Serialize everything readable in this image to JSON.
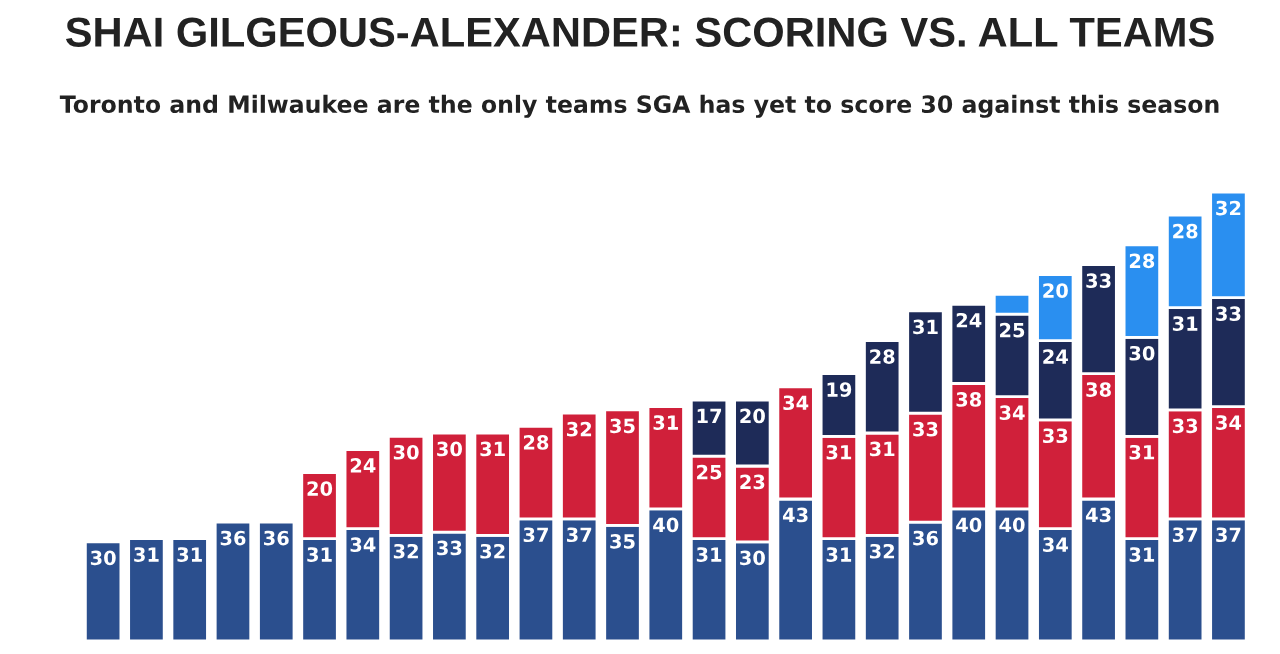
{
  "chart_data": {
    "type": "bar",
    "stacked": true,
    "title": "SHAI GILGEOUS-ALEXANDER: SCORING VS. ALL TEAMS",
    "subtitle": "Toronto and Milwaukee are the only teams SGA has yet to score 30 against this season",
    "categories": [
      null,
      null,
      null,
      null,
      null,
      null,
      null,
      null,
      null,
      null,
      null,
      null,
      null,
      null,
      null,
      null,
      null,
      null,
      null,
      null,
      null,
      null,
      null,
      null,
      null,
      null,
      null
    ],
    "series": [
      {
        "color": "#2b4f8e",
        "values": [
          30,
          31,
          31,
          36,
          36,
          31,
          34,
          32,
          33,
          32,
          37,
          37,
          35,
          40,
          31,
          30,
          43,
          31,
          32,
          36,
          40,
          40,
          34,
          43,
          31,
          37,
          37
        ],
        "value_labels": [
          "30",
          "31",
          "31",
          "36",
          "36",
          "31",
          "34",
          "32",
          "33",
          "32",
          "37",
          "37",
          "35",
          "40",
          "31",
          "30",
          "43",
          "31",
          "32",
          "36",
          "40",
          "40",
          "34",
          "43",
          "31",
          "37",
          "37"
        ]
      },
      {
        "color": "#d0203a",
        "values": [
          null,
          null,
          null,
          null,
          null,
          20,
          24,
          30,
          30,
          31,
          28,
          32,
          35,
          31,
          25,
          23,
          34,
          31,
          31,
          33,
          38,
          34,
          33,
          38,
          31,
          33,
          34
        ],
        "value_labels": [
          null,
          null,
          null,
          null,
          null,
          "20",
          "24",
          "30",
          "30",
          "31",
          "28",
          "32",
          "35",
          "31",
          "25",
          "23",
          "34",
          "31",
          "31",
          "33",
          "38",
          "34",
          "33",
          "38",
          "31",
          "33",
          "34"
        ]
      },
      {
        "color": "#1e2b58",
        "values": [
          null,
          null,
          null,
          null,
          null,
          null,
          null,
          null,
          null,
          null,
          null,
          null,
          null,
          null,
          17,
          20,
          null,
          19,
          28,
          31,
          24,
          25,
          24,
          33,
          30,
          31,
          33
        ],
        "value_labels": [
          null,
          null,
          null,
          null,
          null,
          null,
          null,
          null,
          null,
          null,
          null,
          null,
          null,
          null,
          "17",
          "20",
          null,
          "19",
          "28",
          "31",
          "24",
          "25",
          "24",
          "33",
          "30",
          "31",
          "33"
        ]
      },
      {
        "color": "#2a8ff0",
        "values": [
          null,
          null,
          null,
          null,
          null,
          null,
          null,
          null,
          null,
          null,
          null,
          null,
          null,
          null,
          null,
          null,
          null,
          null,
          null,
          null,
          null,
          6,
          20,
          null,
          28,
          28,
          32
        ],
        "value_labels": [
          null,
          null,
          null,
          null,
          null,
          null,
          null,
          null,
          null,
          null,
          null,
          null,
          null,
          null,
          null,
          null,
          null,
          null,
          null,
          null,
          null,
          null,
          "20",
          null,
          "28",
          "28",
          "32"
        ]
      }
    ]
  }
}
